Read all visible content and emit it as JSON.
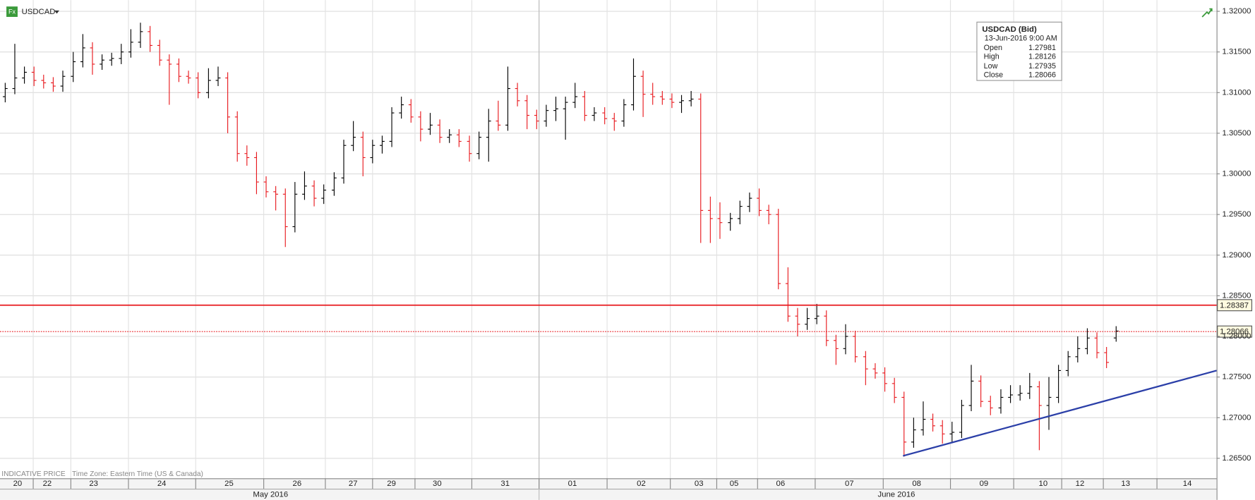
{
  "chart_data": {
    "type": "ohlc",
    "symbol": "USDCAD",
    "icon": "Fx",
    "footer_note": "INDICATIVE PRICE",
    "time_zone": "Time Zone: Eastern Time (US & Canada)",
    "up_color": "#000000",
    "down_color": "#e8191e",
    "grid": true,
    "xlim": [
      -0.5,
      125.4
    ],
    "ylim": [
      1.26254,
      1.32138
    ],
    "yticks": [
      {
        "value": 1.265,
        "label": "1.26500"
      },
      {
        "value": 1.27,
        "label": "1.27000"
      },
      {
        "value": 1.275,
        "label": "1.27500"
      },
      {
        "value": 1.28,
        "label": "1.28000"
      },
      {
        "value": 1.285,
        "label": "1.28500"
      },
      {
        "value": 1.29,
        "label": "1.29000"
      },
      {
        "value": 1.295,
        "label": "1.29500"
      },
      {
        "value": 1.3,
        "label": "1.30000"
      },
      {
        "value": 1.305,
        "label": "1.30500"
      },
      {
        "value": 1.31,
        "label": "1.31000"
      },
      {
        "value": 1.315,
        "label": "1.31500"
      },
      {
        "value": 1.32,
        "label": "1.32000"
      }
    ],
    "xticks": [
      {
        "value": 1.32,
        "label": "20"
      },
      {
        "value": 4.39,
        "label": "22"
      },
      {
        "value": 9.19,
        "label": "23"
      },
      {
        "value": 16.24,
        "label": "24"
      },
      {
        "value": 23.2,
        "label": "25"
      },
      {
        "value": 30.24,
        "label": "26"
      },
      {
        "value": 36.04,
        "label": "27"
      },
      {
        "value": 40.01,
        "label": "29"
      },
      {
        "value": 44.74,
        "label": "30"
      },
      {
        "value": 51.78,
        "label": "31"
      },
      {
        "value": 58.74,
        "label": "01"
      },
      {
        "value": 65.86,
        "label": "02"
      },
      {
        "value": 71.83,
        "label": "03"
      },
      {
        "value": 75.47,
        "label": "05"
      },
      {
        "value": 80.28,
        "label": "06"
      },
      {
        "value": 87.4,
        "label": "07"
      },
      {
        "value": 94.36,
        "label": "08"
      },
      {
        "value": 101.32,
        "label": "09"
      },
      {
        "value": 107.45,
        "label": "10"
      },
      {
        "value": 111.26,
        "label": "12"
      },
      {
        "value": 115.99,
        "label": "13"
      },
      {
        "value": 122.37,
        "label": "14"
      }
    ],
    "months": [
      "May 2016",
      "June 2016"
    ],
    "open": [
      1.3095,
      1.3105,
      1.3118,
      1.3125,
      1.3115,
      1.3112,
      1.3108,
      1.312,
      1.3138,
      1.3155,
      1.3135,
      1.314,
      1.3142,
      1.315,
      1.3162,
      1.3175,
      1.3158,
      1.314,
      1.3135,
      1.312,
      1.3118,
      1.31,
      1.3115,
      1.3118,
      1.307,
      1.3025,
      1.302,
      1.299,
      1.2978,
      1.2975,
      1.2935,
      1.2975,
      1.2985,
      1.297,
      1.298,
      1.2995,
      1.3035,
      1.3045,
      1.302,
      1.3035,
      1.304,
      1.3075,
      1.3085,
      1.307,
      1.3055,
      1.306,
      1.3045,
      1.3048,
      1.304,
      1.3025,
      1.3045,
      1.3065,
      1.306,
      1.3105,
      1.309,
      1.3072,
      1.3065,
      1.3078,
      1.308,
      1.3088,
      1.3095,
      1.3072,
      1.3075,
      1.3068,
      1.3065,
      1.3085,
      1.312,
      1.3098,
      1.3095,
      1.3092,
      1.3088,
      1.309,
      1.3092,
      1.2955,
      1.2945,
      1.294,
      1.2945,
      1.296,
      1.297,
      1.2955,
      1.295,
      1.2865,
      1.2825,
      1.2815,
      1.2822,
      1.2825,
      1.2795,
      1.2785,
      1.28,
      1.2775,
      1.276,
      1.2755,
      1.2742,
      1.2725,
      1.267,
      1.2685,
      1.2698,
      1.269,
      1.268,
      1.2682,
      1.2715,
      1.2745,
      1.272,
      1.2712,
      1.2725,
      1.2728,
      1.273,
      1.2738,
      1.2715,
      1.2725,
      1.2758,
      1.2775,
      1.2785,
      1.2798,
      1.278,
      1.27981
    ],
    "high": [
      1.3112,
      1.316,
      1.3132,
      1.3132,
      1.3122,
      1.3119,
      1.3127,
      1.315,
      1.3172,
      1.3162,
      1.3147,
      1.3149,
      1.316,
      1.3178,
      1.3186,
      1.3182,
      1.3165,
      1.3147,
      1.3142,
      1.3127,
      1.3125,
      1.313,
      1.3132,
      1.3125,
      1.3077,
      1.3035,
      1.3027,
      1.2997,
      1.2985,
      1.2982,
      1.299,
      1.3003,
      1.2992,
      1.2987,
      1.3002,
      1.3042,
      1.3065,
      1.3052,
      1.3042,
      1.3047,
      1.3082,
      1.3095,
      1.3092,
      1.3077,
      1.3075,
      1.3067,
      1.3055,
      1.3055,
      1.3047,
      1.3052,
      1.308,
      1.309,
      1.3132,
      1.3112,
      1.3097,
      1.3079,
      1.3085,
      1.3095,
      1.3095,
      1.3112,
      1.3102,
      1.3082,
      1.3082,
      1.3075,
      1.3092,
      1.3142,
      1.3127,
      1.3112,
      1.3102,
      1.3099,
      1.3097,
      1.3102,
      1.3099,
      1.2972,
      1.2965,
      1.2952,
      1.2967,
      1.2977,
      1.2982,
      1.2962,
      1.2957,
      1.2885,
      1.2835,
      1.2835,
      1.284,
      1.2832,
      1.2802,
      1.2815,
      1.2807,
      1.2782,
      1.2767,
      1.2762,
      1.2749,
      1.2732,
      1.27,
      1.272,
      1.2705,
      1.2697,
      1.2695,
      1.2722,
      1.2765,
      1.2752,
      1.2727,
      1.2735,
      1.274,
      1.274,
      1.2755,
      1.2745,
      1.275,
      1.2765,
      1.2782,
      1.28,
      1.281,
      1.2805,
      1.2787,
      1.28126
    ],
    "low": [
      1.3088,
      1.3098,
      1.3111,
      1.3108,
      1.3105,
      1.3101,
      1.3101,
      1.3113,
      1.3131,
      1.3122,
      1.3128,
      1.3133,
      1.3135,
      1.3143,
      1.3155,
      1.315,
      1.3133,
      1.3085,
      1.3113,
      1.3111,
      1.3093,
      1.3093,
      1.3108,
      1.305,
      1.3015,
      1.301,
      1.2975,
      1.2971,
      1.2955,
      1.291,
      1.2928,
      1.2968,
      1.296,
      1.2963,
      1.2973,
      1.2988,
      1.3028,
      1.2997,
      1.3013,
      1.3025,
      1.3033,
      1.3068,
      1.3063,
      1.304,
      1.3048,
      1.3038,
      1.3038,
      1.3033,
      1.3015,
      1.3018,
      1.3015,
      1.3053,
      1.3053,
      1.3083,
      1.3055,
      1.3055,
      1.3058,
      1.3065,
      1.3042,
      1.3081,
      1.3065,
      1.3065,
      1.3061,
      1.3053,
      1.3058,
      1.3078,
      1.307,
      1.3085,
      1.3085,
      1.3081,
      1.3075,
      1.3083,
      1.2915,
      1.2915,
      1.292,
      1.293,
      1.2938,
      1.2953,
      1.2948,
      1.2938,
      1.2858,
      1.2818,
      1.28,
      1.2808,
      1.2815,
      1.2788,
      1.2765,
      1.2778,
      1.2768,
      1.274,
      1.2748,
      1.2732,
      1.2718,
      1.2652,
      1.2663,
      1.2678,
      1.2683,
      1.2668,
      1.267,
      1.2675,
      1.2708,
      1.2713,
      1.2703,
      1.2705,
      1.2718,
      1.2721,
      1.2723,
      1.266,
      1.2685,
      1.2718,
      1.2751,
      1.2768,
      1.2778,
      1.2773,
      1.2761,
      1.27935
    ],
    "close": [
      1.3105,
      1.3118,
      1.3125,
      1.3115,
      1.3112,
      1.3108,
      1.312,
      1.3138,
      1.3155,
      1.3135,
      1.314,
      1.3142,
      1.315,
      1.3162,
      1.3175,
      1.3158,
      1.314,
      1.3135,
      1.312,
      1.3118,
      1.31,
      1.3115,
      1.3118,
      1.307,
      1.3025,
      1.302,
      1.299,
      1.2978,
      1.2975,
      1.2935,
      1.2975,
      1.2985,
      1.297,
      1.298,
      1.2995,
      1.3035,
      1.3045,
      1.302,
      1.3035,
      1.304,
      1.3075,
      1.3085,
      1.307,
      1.3055,
      1.306,
      1.3045,
      1.3048,
      1.304,
      1.3025,
      1.3045,
      1.3065,
      1.306,
      1.3105,
      1.309,
      1.3072,
      1.3065,
      1.3078,
      1.308,
      1.3088,
      1.3095,
      1.3072,
      1.3075,
      1.3068,
      1.3065,
      1.3085,
      1.312,
      1.3098,
      1.3095,
      1.3092,
      1.3088,
      1.309,
      1.3092,
      1.2955,
      1.2945,
      1.294,
      1.2945,
      1.296,
      1.297,
      1.2955,
      1.295,
      1.2865,
      1.2825,
      1.2815,
      1.2822,
      1.2825,
      1.2795,
      1.2785,
      1.28,
      1.2775,
      1.276,
      1.2755,
      1.2742,
      1.2725,
      1.267,
      1.2685,
      1.2698,
      1.269,
      1.268,
      1.2682,
      1.2715,
      1.2745,
      1.272,
      1.2712,
      1.2725,
      1.2728,
      1.273,
      1.2738,
      1.2715,
      1.2725,
      1.2758,
      1.2775,
      1.2785,
      1.2798,
      1.278,
      1.2768,
      1.28066
    ],
    "levels": [
      {
        "value": 1.28387,
        "color": "#e8191e",
        "style": "solid"
      },
      {
        "value": 1.28066,
        "color": "#e8191e",
        "style": "dotted"
      }
    ],
    "trendline": {
      "color": "#2b3fa8",
      "x": [
        92.95,
        125.4
      ],
      "y": [
        1.2653,
        1.2758
      ]
    },
    "tooltip": {
      "title": "USDCAD (Bid)",
      "time": "13-Jun-2016 9:00 AM",
      "rows": [
        [
          "Open",
          "1.27981"
        ],
        [
          "High",
          "1.28126"
        ],
        [
          "Low",
          "1.27935"
        ],
        [
          "Close",
          "1.28066"
        ]
      ]
    }
  }
}
